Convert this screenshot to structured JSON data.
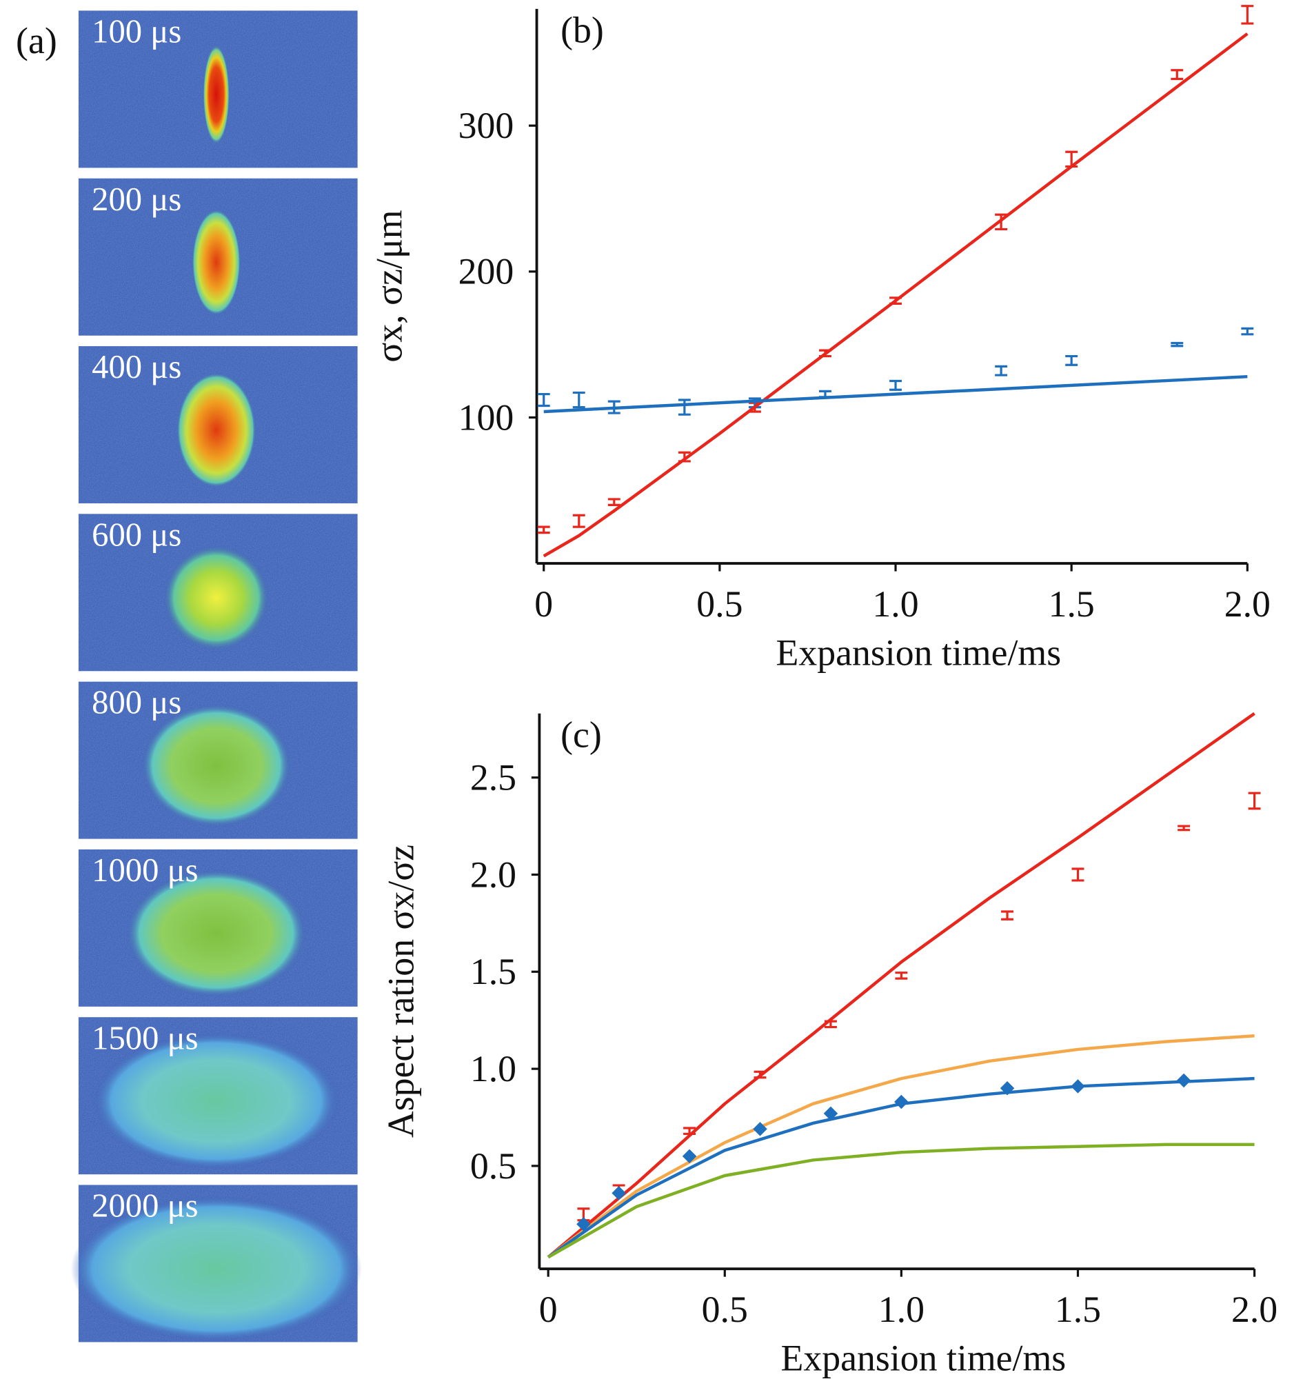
{
  "images": {
    "label": "(a)",
    "frames": [
      "100 μs",
      "200 μs",
      "400 μs",
      "600 μs",
      "800 μs",
      "1000 μs",
      "1500 μs",
      "2000 μs"
    ]
  },
  "chart_data": [
    {
      "type": "scatter",
      "label": "(b)",
      "xlabel": "Expansion time/ms",
      "ylabel": "σx, σz/μm",
      "xlim": [
        -0.02,
        2.0
      ],
      "xticks": [
        0,
        0.5,
        {
          "value": 1,
          "label": "1.0"
        },
        1.5,
        {
          "value": 2,
          "label": "2.0"
        }
      ],
      "ylim": [
        0,
        380
      ],
      "yticks": [
        100,
        200,
        300
      ],
      "series": [
        {
          "color": "#e8261c",
          "marker": "errorbar",
          "x": [
            0,
            0.1,
            0.2,
            0.4,
            0.6,
            0.8,
            1.0,
            1.3,
            1.5,
            1.8,
            2.0
          ],
          "values": [
            23,
            29,
            42,
            73,
            107,
            144,
            180,
            234,
            277,
            335,
            376
          ],
          "errors": [
            2,
            4,
            2,
            3,
            3,
            2,
            2,
            5,
            5,
            3,
            6
          ]
        },
        {
          "color": "#1f6fbf",
          "marker": "errorbar",
          "x": [
            0,
            0.1,
            0.2,
            0.4,
            0.6,
            0.8,
            1.0,
            1.3,
            1.5,
            1.8,
            2.0
          ],
          "values": [
            112,
            112,
            107,
            107,
            110,
            116,
            122,
            132,
            139,
            150,
            159
          ],
          "errors": [
            4,
            5,
            4,
            5,
            3,
            2,
            3,
            3,
            3,
            1,
            2
          ]
        },
        {
          "color": "#e8261c",
          "marker": "line",
          "x": [
            0,
            0.1,
            0.2,
            0.5,
            1.0,
            1.5,
            2.0
          ],
          "values": [
            5,
            19,
            36,
            89,
            180,
            272,
            363
          ]
        },
        {
          "color": "#1f6fbf",
          "marker": "line",
          "x": [
            0,
            2.0
          ],
          "values": [
            104,
            128
          ]
        }
      ]
    },
    {
      "type": "scatter",
      "label": "(c)",
      "xlabel": "Expansion time/ms",
      "ylabel": "Aspect ration σx/σz",
      "xlim": [
        -0.025,
        2.0
      ],
      "xticks": [
        0,
        0.5,
        {
          "value": 1,
          "label": "1.0"
        },
        1.5,
        {
          "value": 2,
          "label": "2.0"
        }
      ],
      "ylim": [
        -0.03,
        2.83
      ],
      "yticks": [
        0.5,
        {
          "value": 1,
          "label": "1.0"
        },
        1.5,
        {
          "value": 2,
          "label": "2.0"
        },
        2.5
      ],
      "series": [
        {
          "color": "#e8261c",
          "marker": "line",
          "x": [
            0,
            0.25,
            0.5,
            0.75,
            1.0,
            1.25,
            1.5,
            1.75,
            2.0
          ],
          "values": [
            0.03,
            0.41,
            0.82,
            1.18,
            1.55,
            1.88,
            2.19,
            2.51,
            2.83
          ]
        },
        {
          "color": "#f5a84a",
          "marker": "line",
          "x": [
            0,
            0.25,
            0.5,
            0.75,
            1.0,
            1.25,
            1.5,
            1.75,
            2.0
          ],
          "values": [
            0.03,
            0.37,
            0.62,
            0.82,
            0.95,
            1.04,
            1.1,
            1.14,
            1.17
          ]
        },
        {
          "color": "#1f6fbf",
          "marker": "line",
          "x": [
            0,
            0.25,
            0.5,
            0.75,
            1.0,
            1.25,
            1.5,
            1.75,
            2.0
          ],
          "values": [
            0.03,
            0.35,
            0.58,
            0.72,
            0.82,
            0.87,
            0.91,
            0.93,
            0.95
          ]
        },
        {
          "color": "#7fb024",
          "marker": "line",
          "x": [
            0,
            0.25,
            0.5,
            0.75,
            1.0,
            1.25,
            1.5,
            1.75,
            2.0
          ],
          "values": [
            0.03,
            0.29,
            0.45,
            0.53,
            0.57,
            0.59,
            0.6,
            0.61,
            0.61
          ]
        },
        {
          "color": "#e8261c",
          "marker": "errorbar",
          "x": [
            0.1,
            0.2,
            0.4,
            0.6,
            0.8,
            1.0,
            1.3,
            1.5,
            1.8,
            2.0
          ],
          "values": [
            0.25,
            0.38,
            0.68,
            0.97,
            1.23,
            1.48,
            1.79,
            2.0,
            2.24,
            2.38
          ],
          "errors": [
            0.03,
            0.02,
            0.015,
            0.015,
            0.015,
            0.015,
            0.02,
            0.03,
            0.01,
            0.04
          ]
        },
        {
          "color": "#1f6fbf",
          "marker": "diamond",
          "x": [
            0.1,
            0.2,
            0.4,
            0.6,
            0.8,
            1.0,
            1.3,
            1.5,
            1.8
          ],
          "values": [
            0.2,
            0.36,
            0.55,
            0.69,
            0.77,
            0.83,
            0.9,
            0.91,
            0.94
          ]
        }
      ]
    }
  ]
}
